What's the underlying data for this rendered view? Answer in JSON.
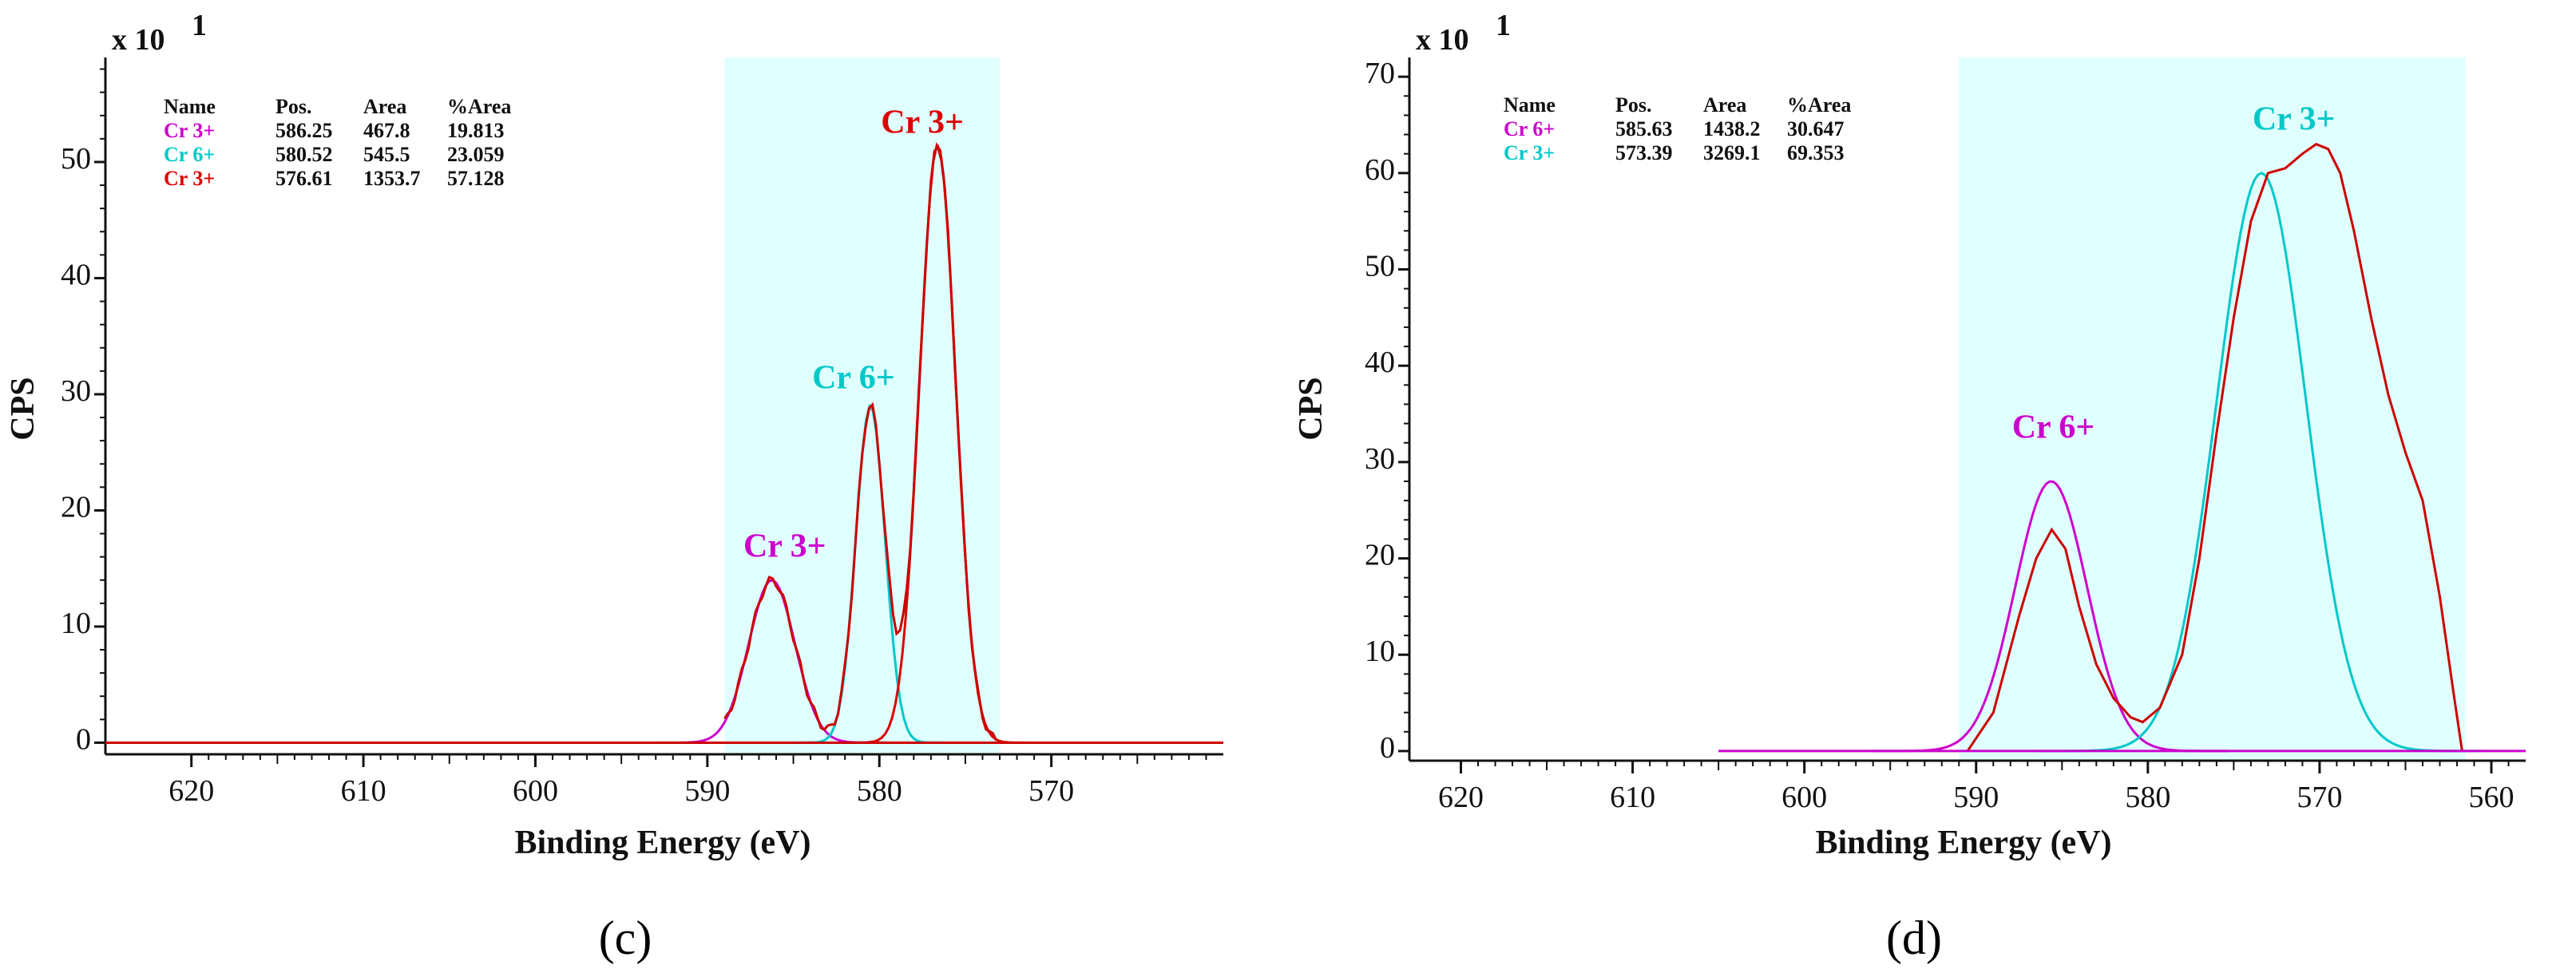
{
  "chart_data": [
    {
      "type": "line",
      "panel_caption": "(c)",
      "xlabel": "Binding Energy (eV)",
      "ylabel": "CPS",
      "y_scale_prefix": "x 10",
      "y_scale_exponent": "1",
      "xlim": [
        625,
        560
      ],
      "ylim": [
        -1,
        59
      ],
      "x_ticks": [
        620,
        610,
        600,
        590,
        580,
        570
      ],
      "y_ticks": [
        0,
        10,
        20,
        30,
        40,
        50
      ],
      "highlight_region": [
        589,
        573
      ],
      "colors": {
        "background": "#ffffff",
        "region": "#e0ffff",
        "cr3_a": "#cc00cc",
        "cr6": "#00c8c8",
        "cr3_b": "#dd0000",
        "envelope": "#cc0000",
        "baseline": "#cc0000",
        "axis": "#111111"
      },
      "legend": {
        "headers": [
          "Name",
          "Pos.",
          "Area",
          "%Area"
        ],
        "rows": [
          {
            "name": "Cr 3+",
            "pos": "586.25",
            "area": "467.8",
            "pct": "19.813",
            "color": "#cc00cc"
          },
          {
            "name": "Cr  6+",
            "pos": "580.52",
            "area": "545.5",
            "pct": "23.059",
            "color": "#00c8c8"
          },
          {
            "name": "Cr  3+",
            "pos": "576.61",
            "area": "1353.7",
            "pct": "57.128",
            "color": "#dd0000"
          }
        ]
      },
      "annotations": [
        {
          "text": "Cr 3+",
          "x": 585.5,
          "y": 16,
          "color": "#cc00cc"
        },
        {
          "text": "Cr  6+",
          "x": 581.5,
          "y": 30.5,
          "color": "#00c8c8"
        },
        {
          "text": "Cr  3+",
          "x": 577.5,
          "y": 52.5,
          "color": "#dd0000"
        }
      ],
      "peaks": [
        {
          "name": "Cr 3+",
          "center": 586.25,
          "height": 14,
          "sigma": 1.35,
          "color": "#cc00cc"
        },
        {
          "name": "Cr 6+",
          "center": 580.52,
          "height": 29,
          "sigma": 0.85,
          "color": "#00c8c8"
        },
        {
          "name": "Cr 3+",
          "center": 576.61,
          "height": 51.5,
          "sigma": 1.05,
          "color": "#dd0000"
        }
      ],
      "baseline": {
        "x_range": [
          625,
          560
        ],
        "y": 0
      }
    },
    {
      "type": "line",
      "panel_caption": "(d)",
      "xlabel": "Binding Energy (eV)",
      "ylabel": "CPS",
      "y_scale_prefix": "x 10",
      "y_scale_exponent": "1",
      "xlim": [
        623,
        558
      ],
      "ylim": [
        -1,
        72
      ],
      "x_ticks": [
        620,
        610,
        600,
        590,
        580,
        570,
        560
      ],
      "y_ticks": [
        0,
        10,
        20,
        30,
        40,
        50,
        60,
        70
      ],
      "highlight_region": [
        591,
        561.5
      ],
      "colors": {
        "background": "#ffffff",
        "region": "#e0ffff",
        "cr6": "#cc00cc",
        "cr3": "#00c8c8",
        "envelope": "#cc0000",
        "baseline": "#cc00cc",
        "axis": "#111111"
      },
      "legend": {
        "headers": [
          "Name",
          "Pos.",
          "Area",
          "%Area"
        ],
        "rows": [
          {
            "name": "Cr 6+",
            "pos": "585.63",
            "area": "1438.2",
            "pct": "30.647",
            "color": "#cc00cc"
          },
          {
            "name": "Cr 3+",
            "pos": "573.39",
            "area": "3269.1",
            "pct": "69.353",
            "color": "#00c8c8"
          }
        ]
      },
      "annotations": [
        {
          "text": "Cr 6+",
          "x": 585.5,
          "y": 32.5,
          "color": "#cc00cc"
        },
        {
          "text": "Cr 3+",
          "x": 571.5,
          "y": 64.5,
          "color": "#00c8c8"
        }
      ],
      "peaks": [
        {
          "name": "Cr 6+",
          "center": 585.63,
          "height": 28,
          "sigma": 2.1,
          "color": "#cc00cc"
        },
        {
          "name": "Cr 3+",
          "center": 573.39,
          "height": 60,
          "sigma": 2.6,
          "color": "#00c8c8"
        }
      ],
      "envelope_points": [
        [
          590.5,
          0
        ],
        [
          589,
          4
        ],
        [
          587.5,
          14
        ],
        [
          586.5,
          20
        ],
        [
          585.6,
          23
        ],
        [
          584.8,
          21
        ],
        [
          584,
          15
        ],
        [
          583,
          9
        ],
        [
          582,
          5.5
        ],
        [
          581,
          3.5
        ],
        [
          580.3,
          3
        ],
        [
          579.3,
          4.5
        ],
        [
          578,
          10
        ],
        [
          577,
          20
        ],
        [
          576,
          33
        ],
        [
          575,
          45
        ],
        [
          574,
          55
        ],
        [
          573,
          60
        ],
        [
          572,
          60.5
        ],
        [
          571,
          62
        ],
        [
          570.2,
          63
        ],
        [
          569.5,
          62.5
        ],
        [
          568.8,
          60
        ],
        [
          568,
          54
        ],
        [
          567,
          45
        ],
        [
          566,
          37
        ],
        [
          565,
          31
        ],
        [
          564,
          26
        ],
        [
          563,
          16
        ],
        [
          562.2,
          6
        ],
        [
          561.7,
          0
        ]
      ],
      "baseline": {
        "x_range": [
          605,
          558
        ],
        "y": 0
      }
    }
  ]
}
